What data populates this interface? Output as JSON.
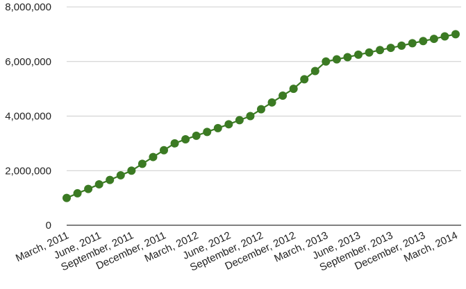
{
  "chart_data": {
    "type": "line",
    "title": "",
    "xlabel": "",
    "ylabel": "",
    "ylim": [
      0,
      8000000
    ],
    "y_ticks": [
      "0",
      "2,000,000",
      "4,000,000",
      "6,000,000",
      "8,000,000"
    ],
    "y_tick_values": [
      0,
      2000000,
      4000000,
      6000000,
      8000000
    ],
    "grid": true,
    "legend": "none",
    "x_tick_labels": [
      "March, 2011",
      "June, 2011",
      "September, 2011",
      "December, 2011",
      "March, 2012",
      "June, 2012",
      "September, 2012",
      "December, 2012",
      "March, 2013",
      "June, 2013",
      "September, 2013",
      "December, 2013",
      "March, 2014"
    ],
    "x": [
      "2011-03",
      "2011-04",
      "2011-05",
      "2011-06",
      "2011-07",
      "2011-08",
      "2011-09",
      "2011-10",
      "2011-11",
      "2011-12",
      "2012-01",
      "2012-02",
      "2012-03",
      "2012-04",
      "2012-05",
      "2012-06",
      "2012-07",
      "2012-08",
      "2012-09",
      "2012-10",
      "2012-11",
      "2012-12",
      "2013-01",
      "2013-02",
      "2013-03",
      "2013-04",
      "2013-05",
      "2013-06",
      "2013-07",
      "2013-08",
      "2013-09",
      "2013-10",
      "2013-11",
      "2013-12",
      "2014-01",
      "2014-02",
      "2014-03"
    ],
    "series": [
      {
        "color": "#3b7a23",
        "values": [
          1000000,
          1170000,
          1330000,
          1500000,
          1660000,
          1830000,
          2000000,
          2250000,
          2500000,
          2750000,
          3000000,
          3150000,
          3280000,
          3420000,
          3560000,
          3700000,
          3850000,
          4000000,
          4250000,
          4500000,
          4750000,
          5000000,
          5350000,
          5650000,
          6000000,
          6080000,
          6160000,
          6250000,
          6330000,
          6420000,
          6500000,
          6580000,
          6670000,
          6750000,
          6830000,
          6920000,
          7000000
        ]
      }
    ]
  }
}
